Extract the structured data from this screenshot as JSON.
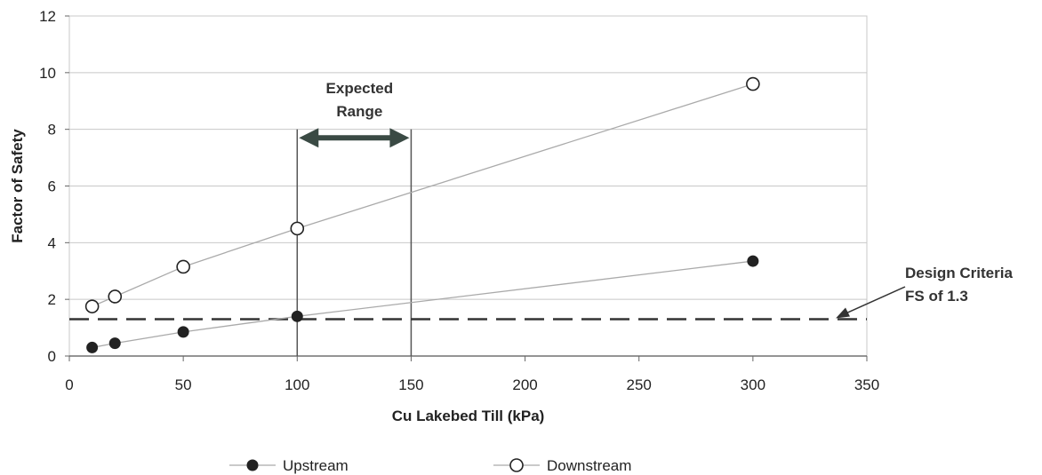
{
  "chart_data": {
    "type": "scatter",
    "title": "",
    "xlabel": "Cu Lakebed Till (kPa)",
    "ylabel": "Factor of Safety",
    "xlim": [
      0,
      350
    ],
    "ylim": [
      0,
      12
    ],
    "xticks": [
      "0",
      "50",
      "100",
      "150",
      "200",
      "250",
      "300",
      "350"
    ],
    "yticks": [
      "0",
      "2",
      "4",
      "6",
      "8",
      "10",
      "12"
    ],
    "grid": "horizontal",
    "legend_position": "bottom",
    "series": [
      {
        "name": "Upstream",
        "marker": "filled-circle",
        "x": [
          10,
          20,
          50,
          100,
          300
        ],
        "y": [
          0.3,
          0.45,
          0.85,
          1.4,
          3.35
        ]
      },
      {
        "name": "Downstream",
        "marker": "open-circle",
        "x": [
          10,
          20,
          50,
          100,
          300
        ],
        "y": [
          1.75,
          2.1,
          3.15,
          4.5,
          9.6
        ]
      }
    ],
    "reference_line": {
      "y": 1.3,
      "style": "dashed",
      "label_lines": [
        "Design Criteria",
        "FS of 1.3"
      ]
    },
    "expected_range": {
      "x_start": 100,
      "x_end": 150,
      "label_lines": [
        "Expected",
        "Range"
      ]
    },
    "colors": {
      "line": "#aaaaaa",
      "marker": "#222222",
      "grid": "#c8c8c8",
      "arrow": "#3a4a44"
    }
  }
}
